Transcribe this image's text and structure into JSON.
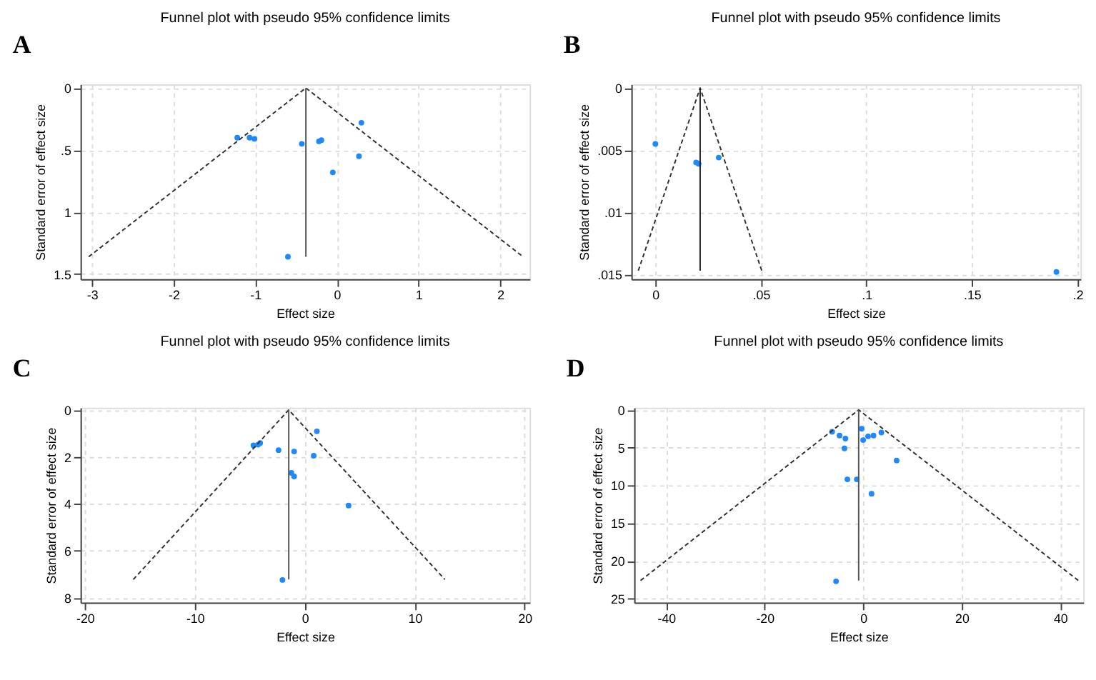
{
  "chart_data": [
    {
      "type": "scatter",
      "title": "Funnel plot with pseudo 95% confidence limits",
      "xlabel": "Effect size",
      "ylabel": "Standard error of effect size",
      "annotations": [
        "A"
      ],
      "grid": true,
      "xlim": [
        -3.14,
        2.36
      ],
      "ylim": [
        1.54,
        -0.03
      ],
      "xticks": [
        -3,
        -2,
        -1,
        0,
        1,
        2
      ],
      "yticks": [
        0,
        {
          "value": 0.5,
          "label": ".5"
        },
        1,
        1.5
      ],
      "series": [
        {
          "marker": "circle",
          "color": "#1e88ff",
          "x": [
            -1.22,
            -1.07,
            -1.01,
            -0.43,
            -0.22,
            -0.19,
            0.3,
            0.27,
            -0.05,
            -0.6
          ],
          "values": [
            0.4,
            0.4,
            0.41,
            0.45,
            0.43,
            0.42,
            0.28,
            0.55,
            0.68,
            1.36
          ]
        },
        {
          "type": "line",
          "line_style": "dashed",
          "color": "#333333",
          "x": [
            -3.04,
            -0.38,
            2.28
          ],
          "values": [
            1.36,
            0,
            1.36
          ]
        },
        {
          "type": "line",
          "line_style": "solid",
          "color": "#555555",
          "x": [
            -0.38,
            -0.38
          ],
          "values": [
            0,
            1.36
          ]
        }
      ]
    },
    {
      "type": "scatter",
      "title": "Funnel plot with pseudo 95% confidence limits",
      "xlabel": "Effect size",
      "ylabel": "Standard error of effect size",
      "annotations": [
        "B"
      ],
      "grid": true,
      "xlim": [
        -0.0114,
        0.2014
      ],
      "ylim": [
        0.01538,
        -0.0003
      ],
      "xticks": [
        0,
        {
          "value": 0.05,
          "label": ".05"
        },
        {
          "value": 0.1,
          "label": ".1"
        },
        {
          "value": 0.15,
          "label": ".15"
        },
        {
          "value": 0.2,
          "label": ".2"
        }
      ],
      "yticks": [
        0,
        {
          "value": 0.005,
          "label": ".005"
        },
        {
          "value": 0.01,
          "label": ".01"
        },
        {
          "value": 0.015,
          "label": ".015"
        }
      ],
      "series": [
        {
          "marker": "circle",
          "color": "#1e88ff",
          "x": [
            0.0,
            0.0193,
            0.0205,
            0.03,
            0.19
          ],
          "values": [
            0.0045,
            0.006,
            0.0061,
            0.0056,
            0.0148
          ]
        },
        {
          "type": "line",
          "line_style": "dashed",
          "color": "#333333",
          "x": [
            -0.0081,
            0.0212,
            0.0504
          ],
          "values": [
            0.0147,
            0,
            0.0147
          ]
        },
        {
          "type": "line",
          "line_style": "solid",
          "color": "#222222",
          "x": [
            0.0212,
            0.0212
          ],
          "values": [
            0,
            0.0147
          ]
        }
      ]
    },
    {
      "type": "scatter",
      "title": "Funnel plot with pseudo 95% confidence limits",
      "xlabel": "Effect size",
      "ylabel": "Standard error of effect size",
      "annotations": [
        "C"
      ],
      "grid": true,
      "xlim": [
        -20.4,
        20.45
      ],
      "ylim": [
        8.2,
        -0.1
      ],
      "xticks": [
        -20,
        -10,
        0,
        10,
        20
      ],
      "yticks": [
        0,
        2,
        4,
        6,
        8
      ],
      "series": [
        {
          "marker": "circle",
          "color": "#1e88ff",
          "x": [
            1.1,
            -4.67,
            -4.26,
            -4.06,
            -2.39,
            -0.97,
            0.81,
            -1.22,
            -0.97,
            3.98,
            -2.03
          ],
          "values": [
            0.91,
            1.51,
            1.48,
            1.41,
            1.71,
            1.77,
            1.95,
            2.68,
            2.83,
            4.07,
            7.24
          ]
        },
        {
          "type": "line",
          "line_style": "dashed",
          "color": "#333333",
          "x": [
            -15.6,
            -1.46,
            12.74
          ],
          "values": [
            7.22,
            0,
            7.22
          ]
        },
        {
          "type": "line",
          "line_style": "solid",
          "color": "#555555",
          "x": [
            -1.46,
            -1.46
          ],
          "values": [
            0,
            7.22
          ]
        }
      ]
    },
    {
      "type": "scatter",
      "title": "Funnel plot with pseudo 95% confidence limits",
      "xlabel": "Effect size",
      "ylabel": "Standard error of effect size",
      "annotations": [
        "D"
      ],
      "grid": true,
      "xlim": [
        -46.5,
        44.7
      ],
      "ylim": [
        25.5,
        -0.3
      ],
      "xticks": [
        -40,
        -20,
        0,
        20,
        40
      ],
      "yticks": [
        0,
        5,
        10,
        15,
        20,
        25
      ],
      "series": [
        {
          "marker": "circle",
          "color": "#1e88ff",
          "x": [
            -6.3,
            -4.8,
            -3.6,
            -3.8,
            -0.3,
            0.0,
            1.0,
            2.1,
            3.7,
            6.8,
            -3.2,
            -1.3,
            1.7,
            -5.5
          ],
          "values": [
            2.9,
            3.4,
            3.8,
            5.1,
            2.5,
            4.0,
            3.5,
            3.4,
            3.0,
            6.7,
            9.2,
            9.2,
            11.1,
            22.7
          ]
        },
        {
          "type": "line",
          "line_style": "dashed",
          "color": "#333333",
          "x": [
            -45.2,
            -0.91,
            43.7
          ],
          "values": [
            22.6,
            0,
            22.6
          ]
        },
        {
          "type": "line",
          "line_style": "solid",
          "color": "#555555",
          "x": [
            -0.91,
            -0.91
          ],
          "values": [
            0,
            22.6
          ]
        }
      ]
    }
  ]
}
